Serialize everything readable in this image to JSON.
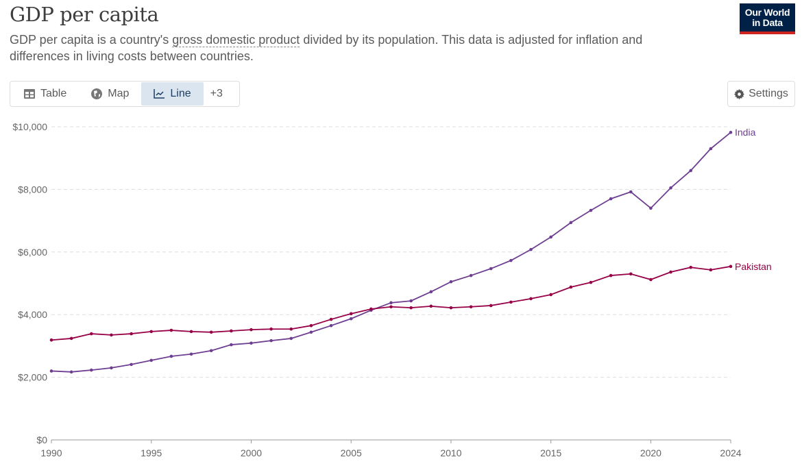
{
  "header": {
    "title": "GDP per capita",
    "subtitle_pre": "GDP per capita is a country's ",
    "subtitle_link": "gross domestic product",
    "subtitle_post": " divided by its population. This data is adjusted for inflation and differences in living costs between countries.",
    "logo": "Our World in Data"
  },
  "tabs": [
    {
      "label": "Table",
      "icon": "table-icon"
    },
    {
      "label": "Map",
      "icon": "globe-icon"
    },
    {
      "label": "Line",
      "icon": "line-chart-icon",
      "active": true
    },
    {
      "label": "+3"
    }
  ],
  "settings": {
    "label": "Settings",
    "icon": "gear-icon"
  },
  "chart_data": {
    "type": "line",
    "title": "GDP per capita",
    "xlim": [
      1990,
      2024
    ],
    "ylim": [
      0,
      10000
    ],
    "yticks": [
      0,
      2000,
      4000,
      6000,
      8000,
      10000
    ],
    "ytick_labels": [
      "$0",
      "$2,000",
      "$4,000",
      "$6,000",
      "$8,000",
      "$10,000"
    ],
    "xticks": [
      1990,
      1995,
      2000,
      2005,
      2010,
      2015,
      2020,
      2024
    ],
    "grid": "horizontal dashed",
    "legend": "end-of-line labels",
    "x": [
      1990,
      1991,
      1992,
      1993,
      1994,
      1995,
      1996,
      1997,
      1998,
      1999,
      2000,
      2001,
      2002,
      2003,
      2004,
      2005,
      2006,
      2007,
      2008,
      2009,
      2010,
      2011,
      2012,
      2013,
      2014,
      2015,
      2016,
      2017,
      2018,
      2019,
      2020,
      2021,
      2022,
      2023,
      2024
    ],
    "series": [
      {
        "name": "India",
        "color": "#6d3e91",
        "values": [
          2200,
          2170,
          2230,
          2300,
          2410,
          2540,
          2670,
          2740,
          2850,
          3040,
          3090,
          3170,
          3240,
          3440,
          3650,
          3870,
          4140,
          4380,
          4440,
          4730,
          5050,
          5250,
          5470,
          5730,
          6080,
          6480,
          6940,
          7330,
          7700,
          7920,
          7400,
          8050,
          8600,
          9300,
          9820
        ]
      },
      {
        "name": "Pakistan",
        "color": "#970046",
        "values": [
          3190,
          3240,
          3390,
          3350,
          3390,
          3460,
          3500,
          3460,
          3440,
          3480,
          3520,
          3540,
          3540,
          3650,
          3850,
          4030,
          4180,
          4250,
          4220,
          4270,
          4220,
          4250,
          4290,
          4400,
          4510,
          4640,
          4880,
          5030,
          5250,
          5300,
          5120,
          5360,
          5510,
          5430,
          5540
        ]
      }
    ]
  }
}
